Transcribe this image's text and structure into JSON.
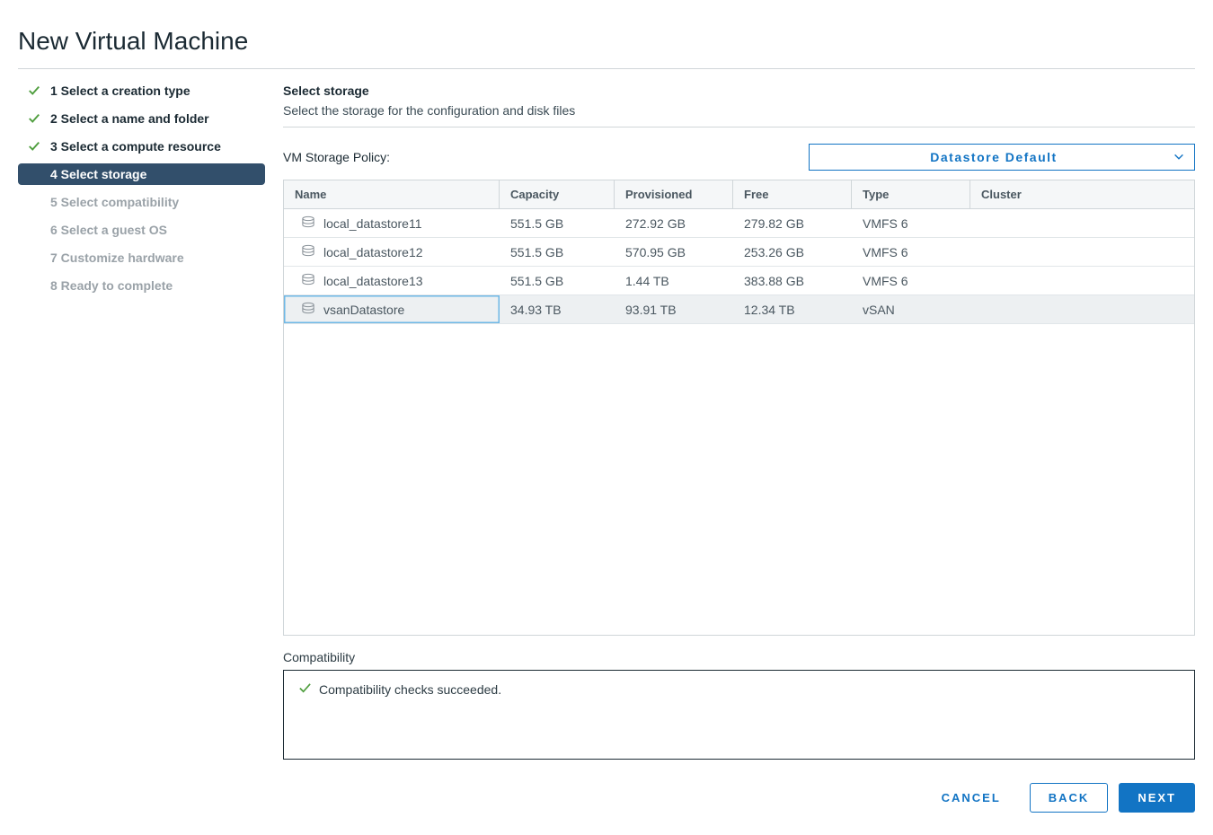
{
  "title": "New Virtual Machine",
  "steps": [
    {
      "num": "1",
      "label": "Select a creation type",
      "state": "completed"
    },
    {
      "num": "2",
      "label": "Select a name and folder",
      "state": "completed"
    },
    {
      "num": "3",
      "label": "Select a compute resource",
      "state": "completed"
    },
    {
      "num": "4",
      "label": "Select storage",
      "state": "active"
    },
    {
      "num": "5",
      "label": "Select compatibility",
      "state": "future"
    },
    {
      "num": "6",
      "label": "Select a guest OS",
      "state": "future"
    },
    {
      "num": "7",
      "label": "Customize hardware",
      "state": "future"
    },
    {
      "num": "8",
      "label": "Ready to complete",
      "state": "future"
    }
  ],
  "section": {
    "title": "Select storage",
    "subtitle": "Select the storage for the configuration and disk files"
  },
  "policy": {
    "label": "VM Storage Policy:",
    "value": "Datastore Default"
  },
  "table": {
    "columns": [
      "Name",
      "Capacity",
      "Provisioned",
      "Free",
      "Type",
      "Cluster"
    ],
    "rows": [
      {
        "name": "local_datastore11",
        "capacity": "551.5 GB",
        "provisioned": "272.92 GB",
        "free": "279.82 GB",
        "type": "VMFS 6",
        "cluster": "",
        "selected": false
      },
      {
        "name": "local_datastore12",
        "capacity": "551.5 GB",
        "provisioned": "570.95 GB",
        "free": "253.26 GB",
        "type": "VMFS 6",
        "cluster": "",
        "selected": false
      },
      {
        "name": "local_datastore13",
        "capacity": "551.5 GB",
        "provisioned": "1.44 TB",
        "free": "383.88 GB",
        "type": "VMFS 6",
        "cluster": "",
        "selected": false
      },
      {
        "name": "vsanDatastore",
        "capacity": "34.93 TB",
        "provisioned": "93.91 TB",
        "free": "12.34 TB",
        "type": "vSAN",
        "cluster": "",
        "selected": true
      }
    ]
  },
  "compat": {
    "label": "Compatibility",
    "message": "Compatibility checks succeeded."
  },
  "buttons": {
    "cancel": "CANCEL",
    "back": "BACK",
    "next": "NEXT"
  },
  "colors": {
    "accent": "#1274c4",
    "check": "#4f9e3e",
    "step_active_bg": "#324f6b",
    "border": "#d0d6d9",
    "text_muted": "#9aa2a8"
  }
}
